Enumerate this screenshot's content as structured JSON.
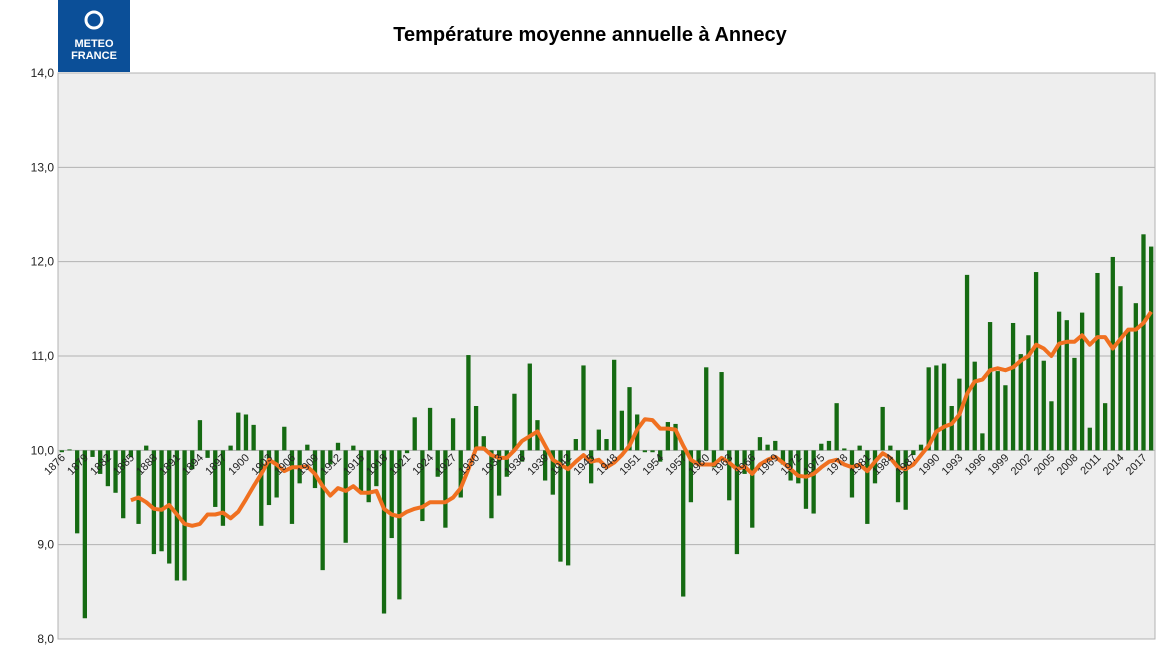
{
  "chart_data": {
    "type": "bar",
    "title": "Température moyenne annuelle à Annecy",
    "logo_text": [
      "METEO",
      "FRANCE"
    ],
    "categories": [
      "1876",
      null,
      null,
      "1879",
      null,
      null,
      "1882",
      null,
      null,
      "1885",
      null,
      null,
      "1888",
      null,
      null,
      "1891",
      null,
      null,
      "1894",
      null,
      null,
      "1897",
      null,
      null,
      "1900",
      null,
      null,
      "1903",
      null,
      null,
      "1906",
      null,
      null,
      "1909",
      null,
      null,
      "1912",
      null,
      null,
      "1915",
      null,
      null,
      "1918",
      null,
      null,
      "1921",
      null,
      null,
      "1924",
      null,
      null,
      "1927",
      null,
      null,
      "1930",
      null,
      null,
      "1933",
      null,
      null,
      "1936",
      null,
      null,
      "1939",
      null,
      null,
      "1942",
      null,
      null,
      "1945",
      null,
      null,
      "1948",
      null,
      null,
      "1951",
      null,
      null,
      "1954",
      null,
      null,
      "1957",
      null,
      null,
      "1960",
      null,
      null,
      "1963",
      null,
      null,
      "1966",
      null,
      null,
      "1969",
      null,
      null,
      "1972",
      null,
      null,
      "1975",
      null,
      null,
      "1978",
      null,
      null,
      "1981",
      null,
      null,
      "1984",
      null,
      null,
      "1987",
      null,
      null,
      "1990",
      null,
      null,
      "1993",
      null,
      null,
      "1996",
      null,
      null,
      "1999",
      null,
      null,
      "2002",
      null,
      null,
      "2005",
      null,
      null,
      "2008",
      null,
      null,
      "2011",
      null,
      null,
      "2014",
      null,
      null,
      "2017",
      null
    ],
    "series": [
      {
        "type": "bar",
        "color": "#156a12",
        "values": [
          9.98,
          10.01,
          9.12,
          8.22,
          9.93,
          9.75,
          9.62,
          9.55,
          9.28,
          9.93,
          9.22,
          10.05,
          8.9,
          8.93,
          8.8,
          8.62,
          8.62,
          9.8,
          10.32,
          9.92,
          9.4,
          9.2,
          10.05,
          10.4,
          10.38,
          10.27,
          9.2,
          9.42,
          9.5,
          10.25,
          9.22,
          9.65,
          10.06,
          9.6,
          8.73,
          9.85,
          10.08,
          9.02,
          10.05,
          9.55,
          9.45,
          9.62,
          8.27,
          9.07,
          8.42,
          9.97,
          10.35,
          9.25,
          10.45,
          9.72,
          9.18,
          10.34,
          9.5,
          11.01,
          10.47,
          10.15,
          9.28,
          9.52,
          9.72,
          10.6,
          9.88,
          10.92,
          10.32,
          9.68,
          9.53,
          8.82,
          8.78,
          10.12,
          10.9,
          9.65,
          10.22,
          10.12,
          10.96,
          10.42,
          10.67,
          10.38,
          9.98,
          9.98,
          9.88,
          10.3,
          10.28,
          8.45,
          9.45,
          9.85,
          10.88,
          9.82,
          10.83,
          9.47,
          8.9,
          9.75,
          9.18,
          10.14,
          10.06,
          10.1,
          9.85,
          9.68,
          9.65,
          9.38,
          9.33,
          10.07,
          10.1,
          10.5,
          10.02,
          9.5,
          10.05,
          9.22,
          9.65,
          10.46,
          10.05,
          9.45,
          9.37,
          9.95,
          10.06,
          10.88,
          10.9,
          10.92,
          10.47,
          10.76,
          11.86,
          10.94,
          10.18,
          11.36,
          10.84,
          10.69,
          11.35,
          11.02,
          11.22,
          11.89,
          10.95,
          10.52,
          11.47,
          11.38,
          10.98,
          11.46,
          10.24,
          11.88,
          10.5,
          12.05,
          11.74,
          11.28,
          11.56,
          12.29,
          12.16
        ]
      },
      {
        "type": "line",
        "color": "#f07020",
        "values": [
          null,
          null,
          null,
          null,
          null,
          null,
          null,
          null,
          null,
          9.47,
          9.5,
          9.45,
          9.38,
          9.37,
          9.42,
          9.32,
          9.22,
          9.2,
          9.22,
          9.32,
          9.32,
          9.34,
          9.28,
          9.35,
          9.48,
          9.62,
          9.75,
          9.9,
          9.85,
          9.78,
          9.82,
          9.82,
          9.83,
          9.75,
          9.62,
          9.52,
          9.6,
          9.57,
          9.62,
          9.55,
          9.55,
          9.57,
          9.38,
          9.32,
          9.3,
          9.35,
          9.38,
          9.4,
          9.45,
          9.45,
          9.45,
          9.5,
          9.6,
          9.8,
          10.02,
          10.02,
          9.95,
          9.92,
          9.92,
          10.0,
          10.1,
          10.15,
          10.2,
          10.05,
          9.9,
          9.85,
          9.8,
          9.88,
          9.95,
          9.88,
          9.9,
          9.82,
          9.87,
          9.95,
          10.05,
          10.22,
          10.33,
          10.32,
          10.23,
          10.23,
          10.22,
          10.05,
          9.9,
          9.85,
          9.85,
          9.85,
          9.92,
          9.87,
          9.8,
          9.83,
          9.75,
          9.85,
          9.9,
          9.93,
          9.87,
          9.8,
          9.73,
          9.72,
          9.75,
          9.82,
          9.88,
          9.9,
          9.85,
          9.82,
          9.85,
          9.78,
          9.88,
          9.97,
          9.92,
          9.82,
          9.8,
          9.85,
          9.95,
          10.05,
          10.2,
          10.25,
          10.28,
          10.38,
          10.6,
          10.73,
          10.75,
          10.85,
          10.87,
          10.85,
          10.88,
          10.95,
          11.0,
          11.12,
          11.08,
          11.0,
          11.13,
          11.15,
          11.15,
          11.22,
          11.12,
          11.2,
          11.2,
          11.08,
          11.18,
          11.28,
          11.28,
          11.35,
          11.47
        ]
      }
    ],
    "bar_base": 10,
    "ylim": [
      8,
      14
    ],
    "yticks": [
      {
        "value": 8,
        "label": "8,0"
      },
      {
        "value": 9,
        "label": "9,0"
      },
      {
        "value": 10,
        "label": "10,0"
      },
      {
        "value": 11,
        "label": "11,0"
      },
      {
        "value": 12,
        "label": "12,0"
      },
      {
        "value": 13,
        "label": "13,0"
      },
      {
        "value": 14,
        "label": "14,0"
      }
    ],
    "grid": true
  }
}
